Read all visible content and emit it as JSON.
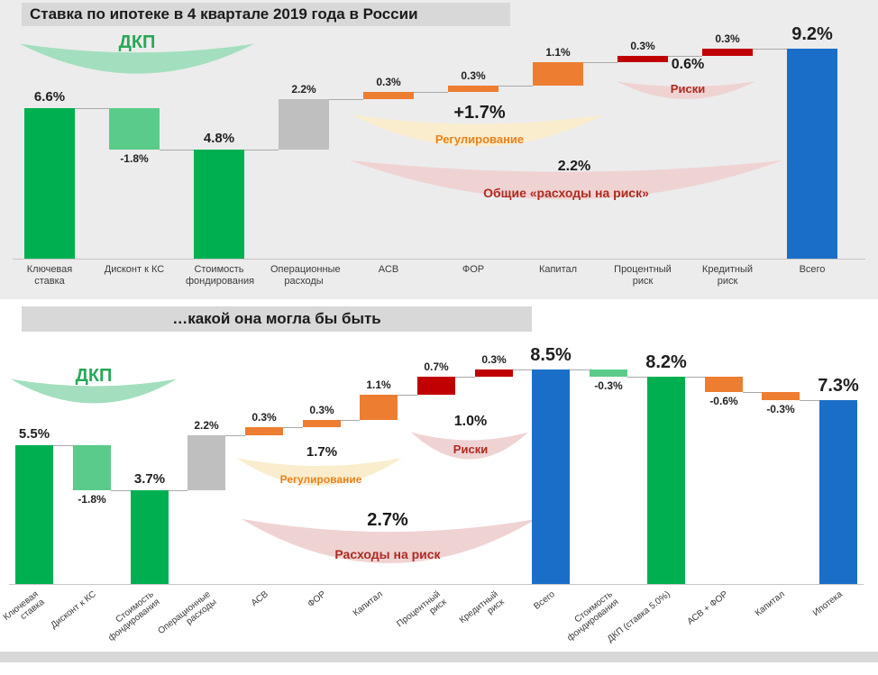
{
  "palette": {
    "green": "#00B050",
    "lightgreen": "#5BCB8A",
    "gray": "#BFBFBF",
    "orange": "#ED7D31",
    "darkred": "#C00000",
    "blue": "#1B6EC8",
    "shape_green": "#A3DFBE",
    "shape_cream": "#FAEDCE",
    "shape_pink": "#EFD3D2",
    "text_green": "#27A857",
    "text_orange": "#E8821E",
    "text_darkred": "#AD2B23",
    "panel_gray": "#ECECEC",
    "strip_gray": "#D8D8D8"
  },
  "chart_data": [
    {
      "type": "bar",
      "subtype": "waterfall",
      "title": "Ставка по ипотеке в 4 квартале 2019 года в России",
      "unit": "%",
      "ylim": [
        0,
        10
      ],
      "grid": false,
      "legend": false,
      "categories": [
        "Ключевая ставка",
        "Дисконт к КС",
        "Стоимость фондирования",
        "Операционные расходы",
        "АСВ",
        "ФОР",
        "Капитал",
        "Процентный риск",
        "Кредитный риск",
        "Всего"
      ],
      "bars": [
        {
          "category": "Ключевая ставка",
          "category_lines": [
            "Ключевая",
            "ставка"
          ],
          "value": 6.6,
          "label": "6.6%",
          "start": 0,
          "end": 6.6,
          "color": "green",
          "side": "above",
          "size": "m"
        },
        {
          "category": "Дисконт к КС",
          "category_lines": [
            "Дисконт к КС"
          ],
          "value": -1.8,
          "label": "-1.8%",
          "start": 6.6,
          "end": 4.8,
          "color": "lightgreen",
          "side": "below",
          "size": "s"
        },
        {
          "category": "Стоимость фондирования",
          "category_lines": [
            "Стоимость",
            "фондирования"
          ],
          "value": 4.8,
          "label": "4.8%",
          "start": 0,
          "end": 4.8,
          "color": "green",
          "side": "above",
          "size": "m"
        },
        {
          "category": "Операционные расходы",
          "category_lines": [
            "Операционные",
            "расходы"
          ],
          "value": 2.2,
          "label": "2.2%",
          "start": 4.8,
          "end": 7.0,
          "color": "gray",
          "side": "above",
          "size": "s"
        },
        {
          "category": "АСВ",
          "category_lines": [
            "АСВ"
          ],
          "value": 0.3,
          "label": "0.3%",
          "start": 7.0,
          "end": 7.3,
          "color": "orange",
          "side": "above",
          "size": "s"
        },
        {
          "category": "ФОР",
          "category_lines": [
            "ФОР"
          ],
          "value": 0.3,
          "label": "0.3%",
          "start": 7.3,
          "end": 7.6,
          "color": "orange",
          "side": "above",
          "size": "s"
        },
        {
          "category": "Капитал",
          "category_lines": [
            "Капитал"
          ],
          "value": 1.1,
          "label": "1.1%",
          "start": 7.6,
          "end": 8.6,
          "color": "orange",
          "side": "above",
          "size": "s"
        },
        {
          "category": "Процентный риск",
          "category_lines": [
            "Процентный",
            "риск"
          ],
          "value": 0.3,
          "label": "0.3%",
          "start": 8.6,
          "end": 8.9,
          "color": "darkred",
          "side": "above",
          "size": "s"
        },
        {
          "category": "Кредитный риск",
          "category_lines": [
            "Кредитный",
            "риск"
          ],
          "value": 0.3,
          "label": "0.3%",
          "start": 8.9,
          "end": 9.2,
          "color": "darkred",
          "side": "above",
          "size": "s"
        },
        {
          "category": "Всего",
          "category_lines": [
            "Всего"
          ],
          "value": 9.2,
          "label": "9.2%",
          "start": 0,
          "end": 9.2,
          "color": "blue",
          "side": "above",
          "size": "l"
        }
      ],
      "annotations": [
        {
          "id": "dkp",
          "name": "ДКП",
          "value": "",
          "shape": "green",
          "name_color": "text_green"
        },
        {
          "id": "regulation",
          "name": "Регулирование",
          "value": "+1.7%",
          "shape": "cream",
          "name_color": "text_orange"
        },
        {
          "id": "risks",
          "name": "Риски",
          "value": "0.6%",
          "shape": "pink",
          "name_color": "text_darkred"
        },
        {
          "id": "risk_total",
          "name": "Общие «расходы на риск»",
          "value": "2.2%",
          "shape": "pink",
          "name_color": "text_darkred"
        }
      ]
    },
    {
      "type": "bar",
      "subtype": "waterfall",
      "title": "…какой она могла бы быть",
      "unit": "%",
      "ylim": [
        0,
        9.5
      ],
      "grid": false,
      "legend": false,
      "categories": [
        "Ключевая ставка",
        "Дисконт к КС",
        "Стоимость фондирования",
        "Операционные расходы",
        "АСВ",
        "ФОР",
        "Капитал",
        "Процентный риск",
        "Кредитный риск",
        "Всего",
        "Стоимость фондирования",
        "ДКП (ставка 5.0%)",
        "АСВ + ФОР",
        "Капитал",
        "Ипотека"
      ],
      "bars": [
        {
          "category": "Ключевая ставка",
          "category_lines": [
            "Ключевая",
            "ставка"
          ],
          "value": 5.5,
          "label": "5.5%",
          "start": 0,
          "end": 5.5,
          "color": "green",
          "side": "above",
          "size": "m"
        },
        {
          "category": "Дисконт к КС",
          "category_lines": [
            "Дисконт к КС"
          ],
          "value": -1.8,
          "label": "-1.8%",
          "start": 5.5,
          "end": 3.7,
          "color": "lightgreen",
          "side": "below",
          "size": "s"
        },
        {
          "category": "Стоимость фондирования",
          "category_lines": [
            "Стоимость",
            "фондирования"
          ],
          "value": 3.7,
          "label": "3.7%",
          "start": 0,
          "end": 3.7,
          "color": "green",
          "side": "above",
          "size": "m"
        },
        {
          "category": "Операционные расходы",
          "category_lines": [
            "Операционные",
            "расходы"
          ],
          "value": 2.2,
          "label": "2.2%",
          "start": 3.7,
          "end": 5.9,
          "color": "gray",
          "side": "above",
          "size": "s"
        },
        {
          "category": "АСВ",
          "category_lines": [
            "АСВ"
          ],
          "value": 0.3,
          "label": "0.3%",
          "start": 5.9,
          "end": 6.2,
          "color": "orange",
          "side": "above",
          "size": "s"
        },
        {
          "category": "ФОР",
          "category_lines": [
            "ФОР"
          ],
          "value": 0.3,
          "label": "0.3%",
          "start": 6.2,
          "end": 6.5,
          "color": "orange",
          "side": "above",
          "size": "s"
        },
        {
          "category": "Капитал",
          "category_lines": [
            "Капитал"
          ],
          "value": 1.1,
          "label": "1.1%",
          "start": 6.5,
          "end": 7.5,
          "color": "orange",
          "side": "above",
          "size": "s"
        },
        {
          "category": "Процентный риск",
          "category_lines": [
            "Процентный",
            "риск"
          ],
          "value": 0.7,
          "label": "0.7%",
          "start": 7.5,
          "end": 8.2,
          "color": "darkred",
          "side": "above",
          "size": "s"
        },
        {
          "category": "Кредитный риск",
          "category_lines": [
            "Кредитный",
            "риск"
          ],
          "value": 0.3,
          "label": "0.3%",
          "start": 8.2,
          "end": 8.5,
          "color": "darkred",
          "side": "above",
          "size": "s"
        },
        {
          "category": "Всего",
          "category_lines": [
            "Всего"
          ],
          "value": 8.5,
          "label": "8.5%",
          "start": 0,
          "end": 8.5,
          "color": "blue",
          "side": "above",
          "size": "l"
        },
        {
          "category": "Стоимость фондирования",
          "category_lines": [
            "Стоимость",
            "фондирования"
          ],
          "value": -0.3,
          "label": "-0.3%",
          "start": 8.5,
          "end": 8.2,
          "color": "lightgreen",
          "side": "below",
          "size": "s"
        },
        {
          "category": "ДКП (ставка 5.0%)",
          "category_lines": [
            "ДКП (ставка 5.0%)"
          ],
          "value": 8.2,
          "label": "8.2%",
          "start": 0,
          "end": 8.2,
          "color": "green",
          "side": "above",
          "size": "l"
        },
        {
          "category": "АСВ + ФОР",
          "category_lines": [
            "АСВ + ФОР"
          ],
          "value": -0.6,
          "label": "-0.6%",
          "start": 8.2,
          "end": 7.6,
          "color": "orange",
          "side": "below",
          "size": "s"
        },
        {
          "category": "Капитал",
          "category_lines": [
            "Капитал"
          ],
          "value": -0.3,
          "label": "-0.3%",
          "start": 7.6,
          "end": 7.3,
          "color": "orange",
          "side": "below",
          "size": "s"
        },
        {
          "category": "Ипотека",
          "category_lines": [
            "Ипотека"
          ],
          "value": 7.3,
          "label": "7.3%",
          "start": 0,
          "end": 7.3,
          "color": "blue",
          "side": "above",
          "size": "l"
        }
      ],
      "annotations": [
        {
          "id": "dkp",
          "name": "ДКП",
          "value": "",
          "shape": "green",
          "name_color": "text_green"
        },
        {
          "id": "regulation",
          "name": "Регулирование",
          "value": "1.7%",
          "shape": "cream",
          "name_color": "text_orange"
        },
        {
          "id": "risks",
          "name": "Риски",
          "value": "1.0%",
          "shape": "pink",
          "name_color": "text_darkred"
        },
        {
          "id": "risk_total",
          "name": "Расходы на риск",
          "value": "2.7%",
          "shape": "pink",
          "name_color": "text_darkred"
        }
      ]
    }
  ]
}
